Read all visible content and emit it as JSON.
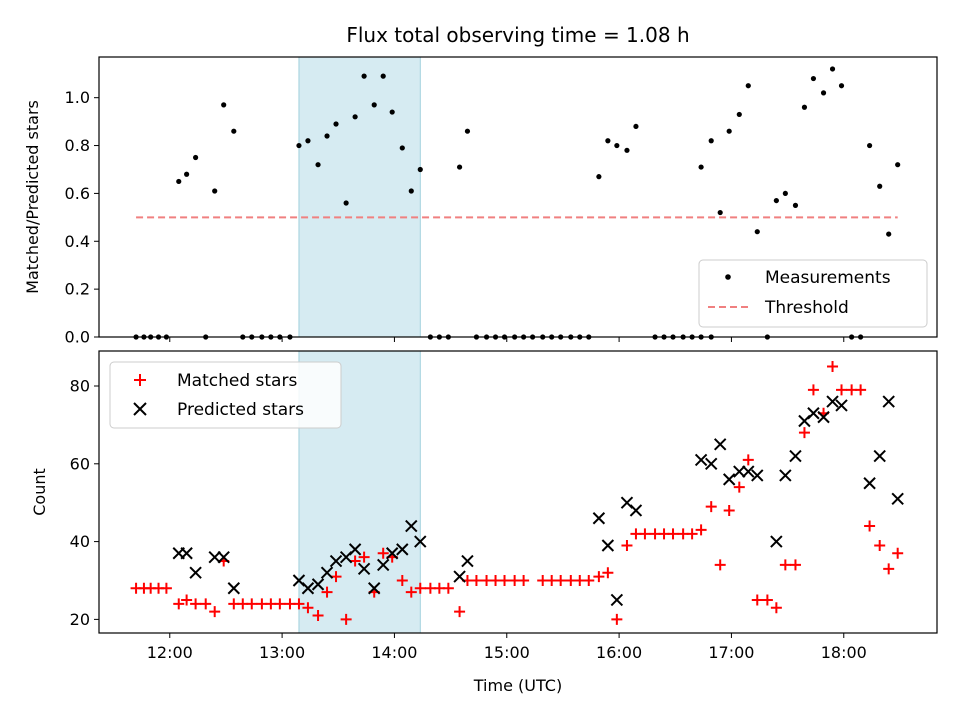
{
  "chart_data": [
    {
      "type": "scatter",
      "title": "Flux total observing time = 1.08 h",
      "xlabel": "",
      "ylabel": "Matched/Predicted stars",
      "xlim_hours": [
        11.37,
        18.83
      ],
      "ylim": [
        0,
        1.17
      ],
      "yticks": [
        "0.0",
        "0.2",
        "0.4",
        "0.6",
        "0.8",
        "1.0"
      ],
      "highlight_span_hours": [
        13.15,
        14.23
      ],
      "legend": {
        "placement": "bottom-right",
        "entries": [
          "Measurements",
          "Threshold"
        ]
      },
      "threshold": {
        "value": 0.5,
        "x_start_hours": 11.7,
        "x_end_hours": 18.48,
        "color": "#f08080"
      },
      "measurements": [
        [
          11.7,
          0
        ],
        [
          11.77,
          0
        ],
        [
          11.83,
          0
        ],
        [
          11.9,
          0
        ],
        [
          11.97,
          0
        ],
        [
          12.08,
          0.65
        ],
        [
          12.15,
          0.68
        ],
        [
          12.23,
          0.75
        ],
        [
          12.32,
          0
        ],
        [
          12.4,
          0.61
        ],
        [
          12.48,
          0.97
        ],
        [
          12.57,
          0.86
        ],
        [
          12.65,
          0
        ],
        [
          12.73,
          0
        ],
        [
          12.82,
          0
        ],
        [
          12.9,
          0
        ],
        [
          12.98,
          0
        ],
        [
          13.07,
          0
        ],
        [
          13.15,
          0.8
        ],
        [
          13.23,
          0.82
        ],
        [
          13.32,
          0.72
        ],
        [
          13.4,
          0.84
        ],
        [
          13.48,
          0.89
        ],
        [
          13.57,
          0.56
        ],
        [
          13.65,
          0.92
        ],
        [
          13.73,
          1.09
        ],
        [
          13.82,
          0.97
        ],
        [
          13.9,
          1.09
        ],
        [
          13.98,
          0.94
        ],
        [
          14.07,
          0.79
        ],
        [
          14.15,
          0.61
        ],
        [
          14.23,
          0.7
        ],
        [
          14.32,
          0
        ],
        [
          14.4,
          0
        ],
        [
          14.48,
          0
        ],
        [
          14.58,
          0.71
        ],
        [
          14.65,
          0.86
        ],
        [
          14.73,
          0
        ],
        [
          14.82,
          0
        ],
        [
          14.9,
          0
        ],
        [
          14.98,
          0
        ],
        [
          15.07,
          0
        ],
        [
          15.15,
          0
        ],
        [
          15.23,
          0
        ],
        [
          15.32,
          0
        ],
        [
          15.4,
          0
        ],
        [
          15.48,
          0
        ],
        [
          15.57,
          0
        ],
        [
          15.65,
          0
        ],
        [
          15.73,
          0
        ],
        [
          15.82,
          0.67
        ],
        [
          15.9,
          0.82
        ],
        [
          15.98,
          0.8
        ],
        [
          16.07,
          0.78
        ],
        [
          16.15,
          0.88
        ],
        [
          16.32,
          0
        ],
        [
          16.4,
          0
        ],
        [
          16.48,
          0
        ],
        [
          16.57,
          0
        ],
        [
          16.65,
          0
        ],
        [
          16.73,
          0
        ],
        [
          16.82,
          0
        ],
        [
          16.73,
          0.71
        ],
        [
          16.82,
          0.82
        ],
        [
          16.9,
          0.52
        ],
        [
          16.98,
          0.86
        ],
        [
          17.07,
          0.93
        ],
        [
          17.15,
          1.05
        ],
        [
          17.23,
          0.44
        ],
        [
          17.32,
          0
        ],
        [
          17.4,
          0.57
        ],
        [
          17.48,
          0.6
        ],
        [
          17.57,
          0.55
        ],
        [
          17.65,
          0.96
        ],
        [
          17.73,
          1.08
        ],
        [
          17.82,
          1.02
        ],
        [
          17.9,
          1.12
        ],
        [
          17.98,
          1.05
        ],
        [
          18.07,
          0
        ],
        [
          18.15,
          0
        ],
        [
          18.23,
          0.8
        ],
        [
          18.32,
          0.63
        ],
        [
          18.4,
          0.43
        ],
        [
          18.48,
          0.72
        ]
      ]
    },
    {
      "type": "scatter",
      "title": "",
      "xlabel": "Time (UTC)",
      "ylabel": "Count",
      "xlim_hours": [
        11.37,
        18.83
      ],
      "ylim": [
        16.5,
        89
      ],
      "yticks": [
        "20",
        "40",
        "60",
        "80"
      ],
      "xticks": [
        {
          "hour": 12,
          "label": "12:00"
        },
        {
          "hour": 13,
          "label": "13:00"
        },
        {
          "hour": 14,
          "label": "14:00"
        },
        {
          "hour": 15,
          "label": "15:00"
        },
        {
          "hour": 16,
          "label": "16:00"
        },
        {
          "hour": 17,
          "label": "17:00"
        },
        {
          "hour": 18,
          "label": "18:00"
        }
      ],
      "highlight_span_hours": [
        13.15,
        14.23
      ],
      "legend": {
        "placement": "top-left",
        "entries": [
          "Matched stars",
          "Predicted stars"
        ]
      },
      "series": [
        {
          "name": "Matched stars",
          "marker": "plus",
          "color": "#ff0000",
          "points": [
            [
              11.7,
              28
            ],
            [
              11.77,
              28
            ],
            [
              11.83,
              28
            ],
            [
              11.9,
              28
            ],
            [
              11.97,
              28
            ],
            [
              12.08,
              24
            ],
            [
              12.15,
              25
            ],
            [
              12.23,
              24
            ],
            [
              12.32,
              24
            ],
            [
              12.4,
              22
            ],
            [
              12.48,
              35
            ],
            [
              12.57,
              24
            ],
            [
              12.65,
              24
            ],
            [
              12.73,
              24
            ],
            [
              12.82,
              24
            ],
            [
              12.9,
              24
            ],
            [
              12.98,
              24
            ],
            [
              13.07,
              24
            ],
            [
              13.15,
              24
            ],
            [
              13.23,
              23
            ],
            [
              13.32,
              21
            ],
            [
              13.4,
              27
            ],
            [
              13.48,
              31
            ],
            [
              13.57,
              20
            ],
            [
              13.65,
              35
            ],
            [
              13.73,
              36
            ],
            [
              13.82,
              27
            ],
            [
              13.9,
              37
            ],
            [
              13.98,
              36
            ],
            [
              14.07,
              30
            ],
            [
              14.15,
              27
            ],
            [
              14.23,
              28
            ],
            [
              14.32,
              28
            ],
            [
              14.4,
              28
            ],
            [
              14.48,
              28
            ],
            [
              14.58,
              22
            ],
            [
              14.65,
              30
            ],
            [
              14.73,
              30
            ],
            [
              14.82,
              30
            ],
            [
              14.9,
              30
            ],
            [
              14.98,
              30
            ],
            [
              15.07,
              30
            ],
            [
              15.15,
              30
            ],
            [
              15.32,
              30
            ],
            [
              15.4,
              30
            ],
            [
              15.48,
              30
            ],
            [
              15.57,
              30
            ],
            [
              15.65,
              30
            ],
            [
              15.73,
              30
            ],
            [
              15.82,
              31
            ],
            [
              15.9,
              32
            ],
            [
              15.98,
              20
            ],
            [
              16.07,
              39
            ],
            [
              16.15,
              42
            ],
            [
              16.23,
              42
            ],
            [
              16.32,
              42
            ],
            [
              16.4,
              42
            ],
            [
              16.48,
              42
            ],
            [
              16.57,
              42
            ],
            [
              16.65,
              42
            ],
            [
              16.73,
              43
            ],
            [
              16.82,
              49
            ],
            [
              16.9,
              34
            ],
            [
              16.98,
              48
            ],
            [
              17.07,
              54
            ],
            [
              17.15,
              61
            ],
            [
              17.23,
              25
            ],
            [
              17.32,
              25
            ],
            [
              17.4,
              23
            ],
            [
              17.48,
              34
            ],
            [
              17.57,
              34
            ],
            [
              17.65,
              68
            ],
            [
              17.73,
              79
            ],
            [
              17.82,
              73
            ],
            [
              17.9,
              85
            ],
            [
              17.98,
              79
            ],
            [
              18.07,
              79
            ],
            [
              18.15,
              79
            ],
            [
              18.23,
              44
            ],
            [
              18.32,
              39
            ],
            [
              18.4,
              33
            ],
            [
              18.48,
              37
            ]
          ]
        },
        {
          "name": "Predicted stars",
          "marker": "x",
          "color": "#000000",
          "points": [
            [
              12.08,
              37
            ],
            [
              12.15,
              37
            ],
            [
              12.23,
              32
            ],
            [
              12.4,
              36
            ],
            [
              12.48,
              36
            ],
            [
              12.57,
              28
            ],
            [
              13.15,
              30
            ],
            [
              13.23,
              28
            ],
            [
              13.32,
              29
            ],
            [
              13.4,
              32
            ],
            [
              13.48,
              35
            ],
            [
              13.57,
              36
            ],
            [
              13.65,
              38
            ],
            [
              13.73,
              33
            ],
            [
              13.82,
              28
            ],
            [
              13.9,
              34
            ],
            [
              13.98,
              37
            ],
            [
              14.07,
              38
            ],
            [
              14.15,
              44
            ],
            [
              14.23,
              40
            ],
            [
              14.58,
              31
            ],
            [
              14.65,
              35
            ],
            [
              15.82,
              46
            ],
            [
              15.9,
              39
            ],
            [
              15.98,
              25
            ],
            [
              16.07,
              50
            ],
            [
              16.15,
              48
            ],
            [
              16.73,
              61
            ],
            [
              16.82,
              60
            ],
            [
              16.9,
              65
            ],
            [
              16.98,
              56
            ],
            [
              17.07,
              58
            ],
            [
              17.15,
              58
            ],
            [
              17.23,
              57
            ],
            [
              17.4,
              40
            ],
            [
              17.48,
              57
            ],
            [
              17.57,
              62
            ],
            [
              17.65,
              71
            ],
            [
              17.73,
              73
            ],
            [
              17.82,
              72
            ],
            [
              17.9,
              76
            ],
            [
              17.98,
              75
            ],
            [
              18.23,
              55
            ],
            [
              18.32,
              62
            ],
            [
              18.4,
              76
            ],
            [
              18.48,
              51
            ]
          ]
        }
      ]
    }
  ]
}
